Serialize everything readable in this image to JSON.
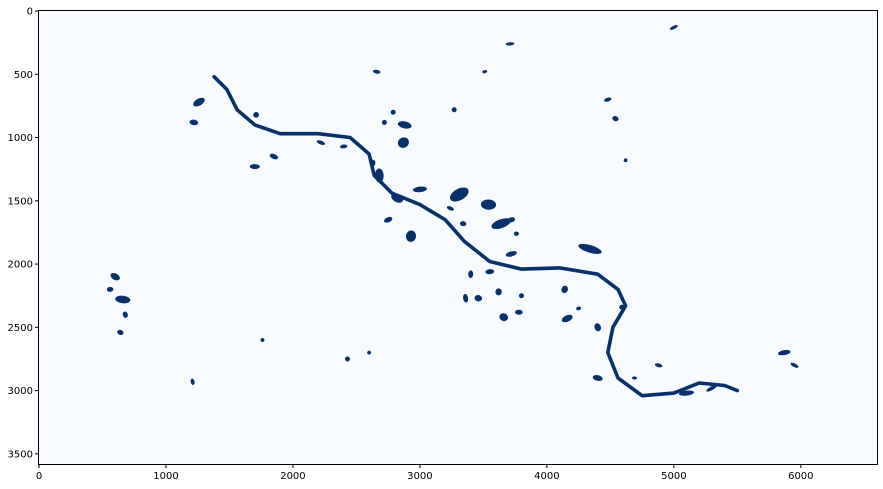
{
  "chart_data": {
    "type": "heatmap",
    "title": "",
    "xlabel": "",
    "ylabel": "",
    "xlim": [
      0,
      6600
    ],
    "ylim": [
      3580,
      0
    ],
    "xticks": [
      0,
      1000,
      2000,
      3000,
      4000,
      5000,
      6000
    ],
    "yticks": [
      0,
      500,
      1000,
      1500,
      2000,
      2500,
      3000,
      3500
    ],
    "xtick_labels": [
      "0",
      "1000",
      "2000",
      "3000",
      "4000",
      "5000",
      "6000"
    ],
    "ytick_labels": [
      "0",
      "500",
      "1000",
      "1500",
      "2000",
      "2500",
      "3000",
      "3500"
    ],
    "colormap": "Blues",
    "background_color": "#f7fbff",
    "water_color": "#08306b",
    "grid": false,
    "river_centerline": [
      [
        1380,
        520
      ],
      [
        1480,
        620
      ],
      [
        1560,
        780
      ],
      [
        1700,
        900
      ],
      [
        1900,
        970
      ],
      [
        2200,
        970
      ],
      [
        2450,
        1000
      ],
      [
        2600,
        1130
      ],
      [
        2640,
        1300
      ],
      [
        2780,
        1440
      ],
      [
        3000,
        1530
      ],
      [
        3200,
        1650
      ],
      [
        3350,
        1820
      ],
      [
        3550,
        1980
      ],
      [
        3800,
        2040
      ],
      [
        4100,
        2030
      ],
      [
        4400,
        2080
      ],
      [
        4560,
        2200
      ],
      [
        4620,
        2330
      ],
      [
        4520,
        2500
      ],
      [
        4480,
        2700
      ],
      [
        4560,
        2900
      ],
      [
        4750,
        3040
      ],
      [
        5000,
        3020
      ],
      [
        5200,
        2940
      ],
      [
        5400,
        2960
      ],
      [
        5500,
        3000
      ]
    ],
    "water_bodies": [
      [
        1260,
        720,
        100,
        55
      ],
      [
        1220,
        880,
        70,
        45
      ],
      [
        1710,
        820,
        45,
        45
      ],
      [
        2220,
        1040,
        70,
        30
      ],
      [
        2680,
        1300,
        70,
        110
      ],
      [
        2870,
        1040,
        90,
        80
      ],
      [
        2880,
        900,
        110,
        55
      ],
      [
        2630,
        1200,
        40,
        50
      ],
      [
        2820,
        1480,
        100,
        60
      ],
      [
        3540,
        1530,
        120,
        80
      ],
      [
        3640,
        1680,
        160,
        70
      ],
      [
        4340,
        1880,
        190,
        60
      ],
      [
        3000,
        1410,
        110,
        45
      ],
      [
        3310,
        1450,
        160,
        90
      ],
      [
        2930,
        1780,
        80,
        90
      ],
      [
        3720,
        1920,
        90,
        40
      ],
      [
        3660,
        2420,
        70,
        60
      ],
      [
        3620,
        2220,
        50,
        55
      ],
      [
        4160,
        2430,
        90,
        50
      ],
      [
        4400,
        2900,
        80,
        45
      ],
      [
        5870,
        2700,
        100,
        40
      ],
      [
        5950,
        2800,
        70,
        28
      ],
      [
        3760,
        1760,
        40,
        35
      ],
      [
        4400,
        2500,
        50,
        65
      ],
      [
        4140,
        2200,
        50,
        60
      ],
      [
        3550,
        2060,
        70,
        40
      ],
      [
        3800,
        2250,
        40,
        40
      ],
      [
        3340,
        1680,
        50,
        40
      ],
      [
        3720,
        1650,
        60,
        40
      ],
      [
        3240,
        1560,
        60,
        30
      ],
      [
        3780,
        2380,
        60,
        40
      ],
      [
        2750,
        1650,
        70,
        40
      ],
      [
        3460,
        2270,
        60,
        50
      ],
      [
        3360,
        2270,
        40,
        70
      ],
      [
        2600,
        2700,
        30,
        30
      ],
      [
        4690,
        2900,
        40,
        25
      ],
      [
        4480,
        700,
        60,
        30
      ],
      [
        4540,
        850,
        50,
        40
      ],
      [
        3710,
        260,
        70,
        25
      ],
      [
        5000,
        130,
        70,
        25
      ],
      [
        2660,
        480,
        60,
        30
      ],
      [
        3510,
        480,
        40,
        25
      ],
      [
        1850,
        1150,
        70,
        40
      ],
      [
        1700,
        1230,
        80,
        40
      ],
      [
        2720,
        880,
        40,
        40
      ],
      [
        2790,
        800,
        40,
        40
      ],
      [
        2400,
        1070,
        60,
        30
      ],
      [
        600,
        2100,
        80,
        50
      ],
      [
        660,
        2280,
        120,
        60
      ],
      [
        680,
        2400,
        40,
        50
      ],
      [
        640,
        2540,
        50,
        40
      ],
      [
        560,
        2200,
        50,
        40
      ],
      [
        3270,
        780,
        40,
        40
      ],
      [
        4620,
        1180,
        30,
        30
      ],
      [
        1210,
        2930,
        30,
        50
      ],
      [
        1760,
        2600,
        30,
        30
      ],
      [
        3400,
        2080,
        40,
        60
      ],
      [
        4590,
        2340,
        40,
        40
      ],
      [
        4880,
        2800,
        60,
        30
      ],
      [
        5100,
        3020,
        120,
        40
      ],
      [
        5300,
        2980,
        100,
        30
      ],
      [
        2430,
        2750,
        40,
        40
      ],
      [
        4250,
        2350,
        40,
        30
      ]
    ]
  }
}
